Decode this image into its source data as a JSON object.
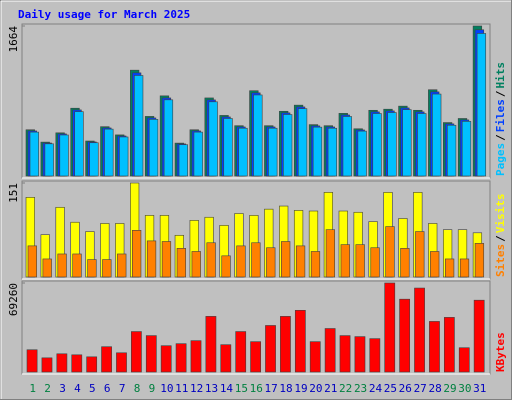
{
  "chart_data": [
    {
      "type": "bar",
      "title": "Daily usage for March 2025",
      "title_color": "#0000ff",
      "legend_separator": "/",
      "ylim": [
        0,
        1664
      ],
      "yticks": [
        1664
      ],
      "series": [
        {
          "name": "Hits",
          "color": "#008060",
          "values": [
            513,
            376,
            479,
            752,
            388,
            547,
            456,
            1174,
            661,
            889,
            365,
            513,
            866,
            672,
            558,
            946,
            558,
            718,
            786,
            570,
            558,
            695,
            524,
            729,
            741,
            775,
            729,
            957,
            593,
            638,
            1664
          ]
        },
        {
          "name": "Files",
          "color": "#0040ff",
          "values": [
            500,
            366,
            467,
            733,
            378,
            533,
            444,
            1144,
            644,
            866,
            356,
            500,
            844,
            655,
            544,
            922,
            544,
            700,
            766,
            556,
            544,
            677,
            511,
            711,
            722,
            755,
            711,
            933,
            578,
            622,
            1622
          ]
        },
        {
          "name": "Pages",
          "color": "#00c0ff",
          "values": [
            487,
            357,
            455,
            714,
            369,
            520,
            433,
            1115,
            628,
            845,
            347,
            487,
            823,
            638,
            530,
            899,
            530,
            682,
            747,
            542,
            530,
            660,
            498,
            693,
            704,
            736,
            693,
            909,
            563,
            606,
            1581
          ]
        }
      ]
    },
    {
      "type": "bar",
      "legend_separator": "/",
      "ylim": [
        0,
        151
      ],
      "yticks": [
        151
      ],
      "series": [
        {
          "name": "Visits",
          "color": "#ffff00",
          "values": [
            128,
            68,
            112,
            88,
            73,
            86,
            86,
            151,
            99,
            99,
            67,
            91,
            96,
            83,
            102,
            99,
            109,
            114,
            107,
            106,
            136,
            106,
            104,
            89,
            136,
            94,
            136,
            86,
            76,
            76,
            71
          ]
        },
        {
          "name": "Sites",
          "color": "#ff8000",
          "values": [
            50,
            29,
            37,
            37,
            28,
            28,
            37,
            75,
            58,
            57,
            46,
            41,
            55,
            34,
            50,
            55,
            47,
            57,
            50,
            41,
            76,
            52,
            52,
            47,
            81,
            46,
            73,
            41,
            29,
            29,
            54
          ]
        }
      ]
    },
    {
      "type": "bar",
      "ylim": [
        0,
        69260
      ],
      "yticks": [
        69260
      ],
      "categories": [
        "1",
        "2",
        "3",
        "4",
        "5",
        "6",
        "7",
        "8",
        "9",
        "10",
        "11",
        "12",
        "13",
        "14",
        "15",
        "16",
        "17",
        "18",
        "19",
        "20",
        "21",
        "22",
        "23",
        "24",
        "25",
        "26",
        "27",
        "28",
        "29",
        "30",
        "31"
      ],
      "category_colors": [
        "#008040",
        "#008040",
        "#0000c0",
        "#0000c0",
        "#0000c0",
        "#0000c0",
        "#0000c0",
        "#008040",
        "#008040",
        "#0000c0",
        "#0000c0",
        "#0000c0",
        "#0000c0",
        "#0000c0",
        "#008040",
        "#008040",
        "#0000c0",
        "#0000c0",
        "#0000c0",
        "#0000c0",
        "#0000c0",
        "#008040",
        "#008040",
        "#0000c0",
        "#0000c0",
        "#0000c0",
        "#0000c0",
        "#0000c0",
        "#008040",
        "#008040",
        "#0000c0"
      ],
      "series": [
        {
          "name": "KBytes",
          "color": "#ff0000",
          "values": [
            17315,
            11019,
            14167,
            13380,
            11806,
            19676,
            14954,
            31482,
            28334,
            20463,
            22037,
            24398,
            43287,
            21250,
            31482,
            23611,
            36204,
            43287,
            48009,
            23611,
            33843,
            28334,
            27546,
            25972,
            69260,
            56667,
            65325,
            39352,
            42500,
            18889,
            55880
          ]
        }
      ]
    }
  ]
}
